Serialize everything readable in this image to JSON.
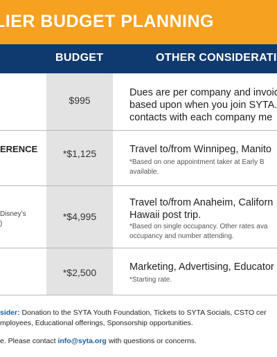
{
  "banner": {
    "title": "LIER BUDGET PLANNING"
  },
  "table": {
    "headers": {
      "budget": "BUDGET",
      "other": "OTHER CONSIDERATIO"
    },
    "rows": [
      {
        "price": "$995",
        "lines": [
          "Dues are per company and invoic",
          "based upon when you join SYTA.",
          "contacts with each company me"
        ],
        "note": []
      },
      {
        "label": "ERENCE",
        "price": "*$1,125",
        "lines": [
          "Travel to/from Winnipeg, Manito"
        ],
        "note": [
          "*Based on one appointment taker at Early B",
          "available."
        ]
      },
      {
        "label": [
          "Disney’s",
          ")"
        ],
        "price": "*$4,995",
        "lines": [
          "Travel to/from Anaheim, Californ",
          "Hawaii post trip."
        ],
        "note": [
          "*Based on single occupancy. Other rates ava",
          "occupancy and number attending."
        ]
      },
      {
        "price": "*$2,500",
        "lines": [
          "Marketing, Advertising, Educator"
        ],
        "note": [
          "*Starting rate."
        ]
      }
    ]
  },
  "footer": {
    "line1_highlight": "sider:",
    "line1_rest": " Donation to the SYTA Youth Foundation, Tickets to SYTA Socials, CSTO cer",
    "line2": "mployees, Educational offerings, Sponsorship opportunities.",
    "line3_start": "e. Please contact ",
    "email": "info@syta.org",
    "line3_end": " with questions or concerns."
  },
  "colors": {
    "banner": "#f6a11f",
    "header": "#0f3a6f",
    "budget_column": "#e3e3e3",
    "highlight": "#1d5e9a"
  }
}
